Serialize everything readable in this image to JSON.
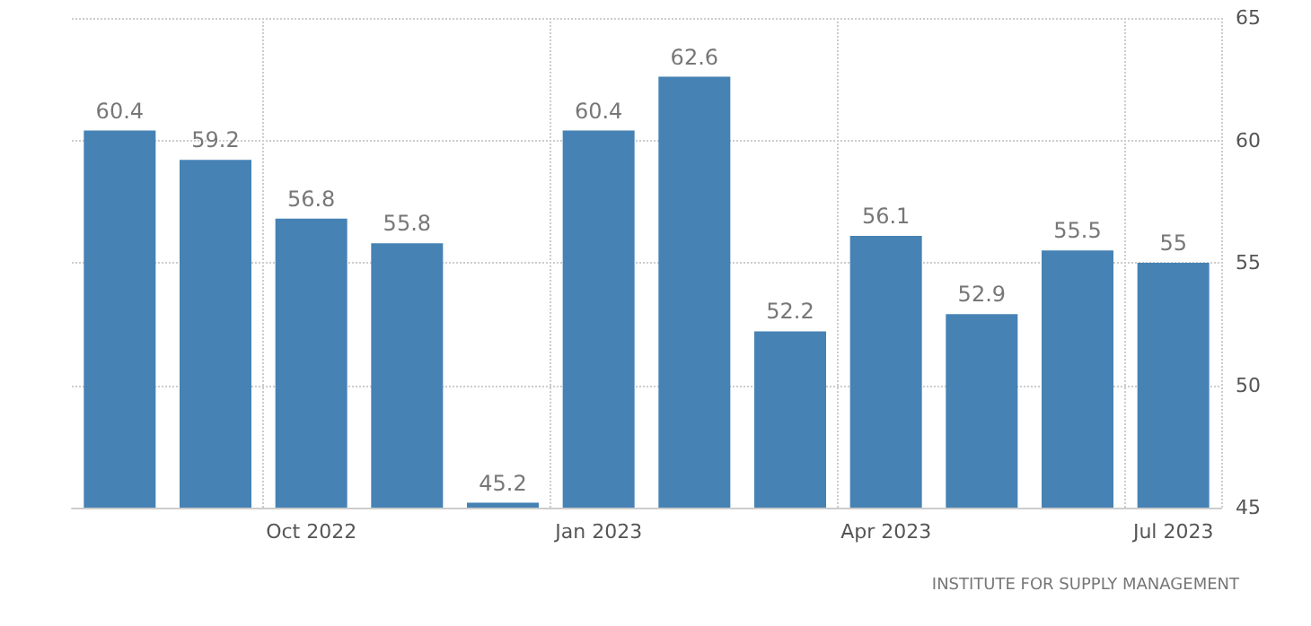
{
  "chart_data": {
    "type": "bar",
    "categories": [
      null,
      null,
      "Oct 2022",
      null,
      null,
      "Jan 2023",
      null,
      null,
      "Apr 2023",
      null,
      null,
      "Jul 2023"
    ],
    "values": [
      60.4,
      59.2,
      56.8,
      55.8,
      45.2,
      60.4,
      62.6,
      52.2,
      56.1,
      52.9,
      55.5,
      55
    ],
    "color": "#4682b4",
    "ylim": [
      45,
      65
    ],
    "yticks": [
      45,
      50,
      55,
      60,
      65
    ],
    "grid": true,
    "data_labels": true,
    "annotations": [
      "INSTITUTE FOR SUPPLY MANAGEMENT"
    ]
  }
}
